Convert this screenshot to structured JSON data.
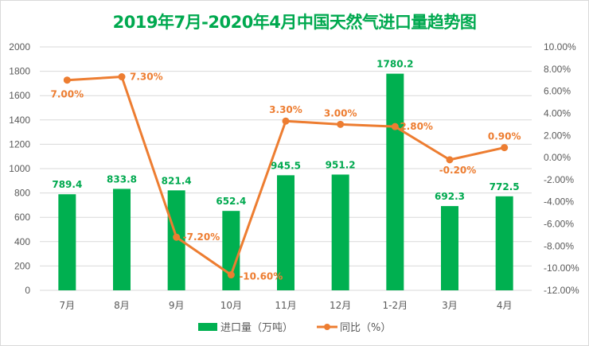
{
  "chart_data": {
    "type": "bar",
    "title": "2019年7月-2020年4月中国天然气进口量趋势图",
    "categories": [
      "7月",
      "8月",
      "9月",
      "10月",
      "11月",
      "12月",
      "1-2月",
      "3月",
      "4月"
    ],
    "series": [
      {
        "name": "进口量（万吨）",
        "type": "bar",
        "axis": "left",
        "color": "#00b050",
        "values": [
          789.4,
          833.8,
          821.4,
          652.4,
          945.5,
          951.2,
          1780.2,
          692.3,
          772.5
        ],
        "labels": [
          "789.4",
          "833.8",
          "821.4",
          "652.4",
          "945.5",
          "951.2",
          "1780.2",
          "692.3",
          "772.5"
        ]
      },
      {
        "name": "同比（%）",
        "type": "line",
        "axis": "right",
        "color": "#ed7d31",
        "values": [
          7.0,
          7.3,
          -7.2,
          -10.6,
          3.3,
          3.0,
          2.8,
          -0.2,
          0.9
        ],
        "labels": [
          "7.00%",
          "7.30%",
          "-7.20%",
          "-10.60%",
          "3.30%",
          "3.00%",
          "2.80%",
          "-0.20%",
          "0.90%"
        ]
      }
    ],
    "y_left": {
      "ylim": [
        0,
        2000
      ],
      "ticks": [
        0,
        200,
        400,
        600,
        800,
        1000,
        1200,
        1400,
        1600,
        1800,
        2000
      ],
      "tick_labels": [
        "0",
        "200",
        "400",
        "600",
        "800",
        "1000",
        "1200",
        "1400",
        "1600",
        "1800",
        "2000"
      ]
    },
    "y_right": {
      "ylim": [
        -12,
        10
      ],
      "ticks": [
        -12,
        -10,
        -8,
        -6,
        -4,
        -2,
        0,
        2,
        4,
        6,
        8,
        10
      ],
      "tick_labels": [
        "-12.00%",
        "-10.00%",
        "-8.00%",
        "-6.00%",
        "-4.00%",
        "-2.00%",
        "0.00%",
        "2.00%",
        "4.00%",
        "6.00%",
        "8.00%",
        "10.00%"
      ]
    },
    "xlabel": "",
    "ylabel": "",
    "grid": true,
    "legend": {
      "position": "bottom",
      "entries": [
        "进口量（万吨）",
        "同比（%）"
      ]
    }
  }
}
